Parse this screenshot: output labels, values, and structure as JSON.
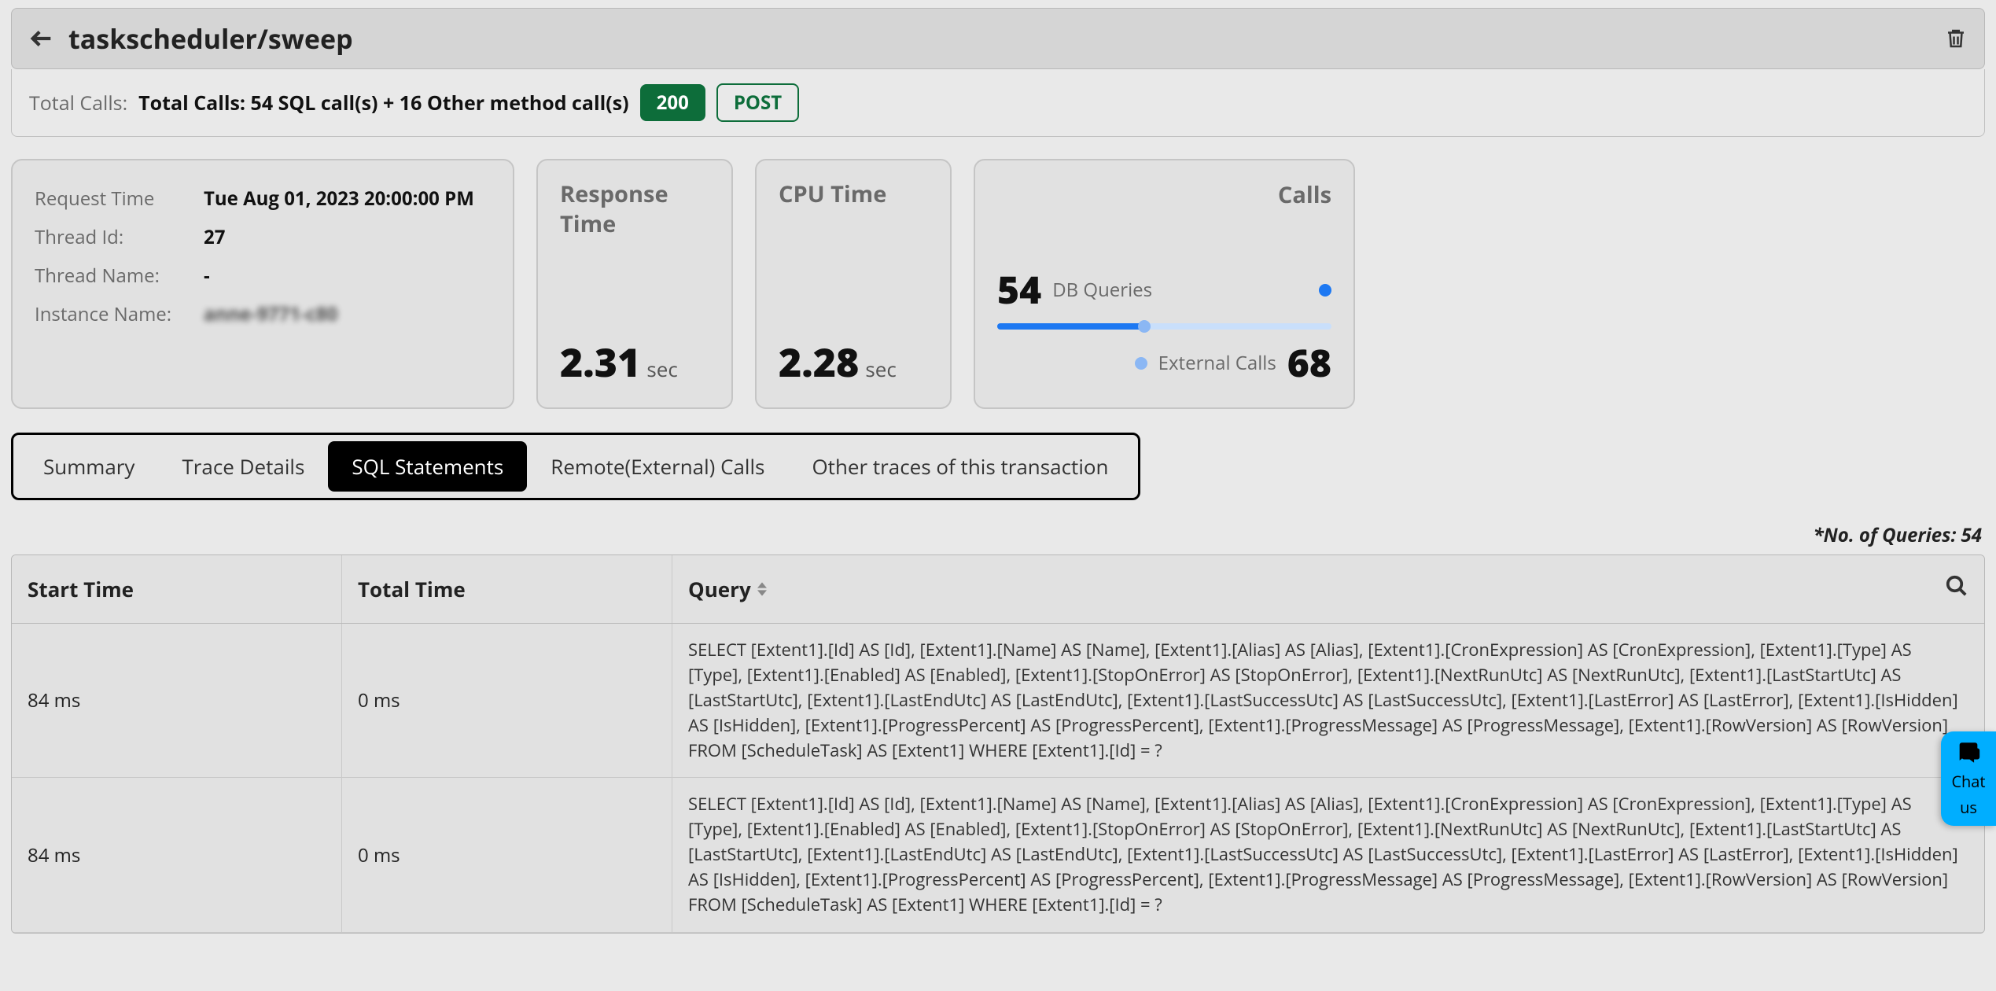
{
  "header": {
    "title": "taskscheduler/sweep"
  },
  "summary": {
    "label": "Total Calls:",
    "text": "Total Calls: 54 SQL call(s) + 16 Other method call(s)",
    "status_code": "200",
    "method": "POST"
  },
  "meta": {
    "request_time_label": "Request Time",
    "request_time": "Tue Aug 01, 2023 20:00:00 PM",
    "thread_id_label": "Thread Id:",
    "thread_id": "27",
    "thread_name_label": "Thread Name:",
    "thread_name": "-",
    "instance_name_label": "Instance Name:",
    "instance_name": "anne-9771-c80"
  },
  "metrics": {
    "response_time": {
      "title": "Response Time",
      "value": "2.31",
      "unit": "sec"
    },
    "cpu_time": {
      "title": "CPU Time",
      "value": "2.28",
      "unit": "sec"
    }
  },
  "calls_card": {
    "title": "Calls",
    "db_value": "54",
    "db_label": "DB Queries",
    "ext_label": "External Calls",
    "ext_value": "68",
    "bar_percent": 44,
    "marker_percent": 44,
    "color_db": "#1d78f2",
    "color_track": "#c9dffb",
    "color_ext_dot": "#8bb7f4"
  },
  "tabs": [
    {
      "id": "summary",
      "label": "Summary",
      "active": false
    },
    {
      "id": "trace",
      "label": "Trace Details",
      "active": false
    },
    {
      "id": "sql",
      "label": "SQL Statements",
      "active": true
    },
    {
      "id": "remote",
      "label": "Remote(External) Calls",
      "active": false
    },
    {
      "id": "other",
      "label": "Other traces of this transaction",
      "active": false
    }
  ],
  "queries_note": "*No. of Queries: 54",
  "table": {
    "columns": {
      "start_time": "Start Time",
      "total_time": "Total Time",
      "query": "Query"
    },
    "rows": [
      {
        "start_time": "84 ms",
        "total_time": "0 ms",
        "query": "SELECT [Extent1].[Id] AS [Id], [Extent1].[Name] AS [Name], [Extent1].[Alias] AS [Alias], [Extent1].[CronExpression] AS [CronExpression], [Extent1].[Type] AS [Type], [Extent1].[Enabled] AS [Enabled], [Extent1].[StopOnError] AS [StopOnError], [Extent1].[NextRunUtc] AS [NextRunUtc], [Extent1].[LastStartUtc] AS [LastStartUtc], [Extent1].[LastEndUtc] AS [LastEndUtc], [Extent1].[LastSuccessUtc] AS [LastSuccessUtc], [Extent1].[LastError] AS [LastError], [Extent1].[IsHidden] AS [IsHidden], [Extent1].[ProgressPercent] AS [ProgressPercent], [Extent1].[ProgressMessage] AS [ProgressMessage], [Extent1].[RowVersion] AS [RowVersion] FROM [ScheduleTask] AS [Extent1] WHERE [Extent1].[Id] = ?"
      },
      {
        "start_time": "84 ms",
        "total_time": "0 ms",
        "query": "SELECT [Extent1].[Id] AS [Id], [Extent1].[Name] AS [Name], [Extent1].[Alias] AS [Alias], [Extent1].[CronExpression] AS [CronExpression], [Extent1].[Type] AS [Type], [Extent1].[Enabled] AS [Enabled], [Extent1].[StopOnError] AS [StopOnError], [Extent1].[NextRunUtc] AS [NextRunUtc], [Extent1].[LastStartUtc] AS [LastStartUtc], [Extent1].[LastEndUtc] AS [LastEndUtc], [Extent1].[LastSuccessUtc] AS [LastSuccessUtc], [Extent1].[LastError] AS [LastError], [Extent1].[IsHidden] AS [IsHidden], [Extent1].[ProgressPercent] AS [ProgressPercent], [Extent1].[ProgressMessage] AS [ProgressMessage], [Extent1].[RowVersion] AS [RowVersion] FROM [ScheduleTask] AS [Extent1] WHERE [Extent1].[Id] = ?"
      }
    ]
  },
  "chat": {
    "line1": "Chat",
    "line2": "us"
  }
}
